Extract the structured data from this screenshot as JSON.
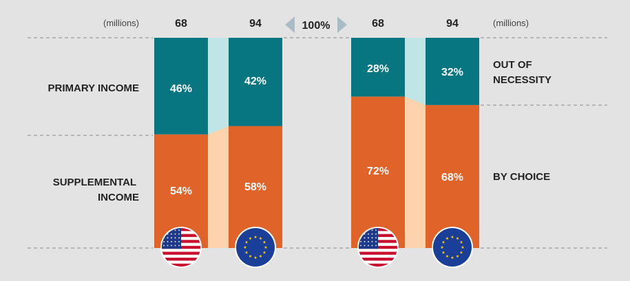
{
  "header": {
    "left_unit": "(millions)",
    "right_unit": "(millions)",
    "center_label": "100%"
  },
  "colors": {
    "teal": "#087680",
    "orange": "#e06429",
    "teal_light": "#bfe5e6",
    "orange_light": "#fcd3ad",
    "arrow": "#a9bcc6"
  },
  "chart_data": [
    {
      "type": "bar",
      "stacked": true,
      "categories": [
        "US",
        "EU"
      ],
      "counts": [
        "68",
        "94"
      ],
      "unit": "(millions)",
      "series": [
        {
          "name": "PRIMARY INCOME",
          "values": [
            46,
            42
          ],
          "labels": [
            "46%",
            "42%"
          ],
          "color": "#087680"
        },
        {
          "name": "SUPPLEMENTAL INCOME",
          "values": [
            54,
            58
          ],
          "labels": [
            "54%",
            "58%"
          ],
          "color": "#e06429"
        }
      ],
      "ylim": [
        0,
        100
      ],
      "legend": "left"
    },
    {
      "type": "bar",
      "stacked": true,
      "categories": [
        "US",
        "EU"
      ],
      "counts": [
        "68",
        "94"
      ],
      "unit": "(millions)",
      "series": [
        {
          "name": "OUT OF NECESSITY",
          "values": [
            28,
            32
          ],
          "labels": [
            "28%",
            "32%"
          ],
          "color": "#087680"
        },
        {
          "name": "BY CHOICE",
          "values": [
            72,
            68
          ],
          "labels": [
            "72%",
            "68%"
          ],
          "color": "#e06429"
        }
      ],
      "ylim": [
        0,
        100
      ],
      "legend": "right"
    }
  ],
  "category_labels": {
    "left_top": [
      "PRIMARY INCOME"
    ],
    "left_bottom": [
      "SUPPLEMENTAL",
      "INCOME"
    ],
    "right_top": [
      "OUT OF",
      "NECESSITY"
    ],
    "right_bottom": [
      "BY CHOICE"
    ]
  },
  "flags": [
    "us-flag-icon",
    "eu-flag-icon"
  ]
}
